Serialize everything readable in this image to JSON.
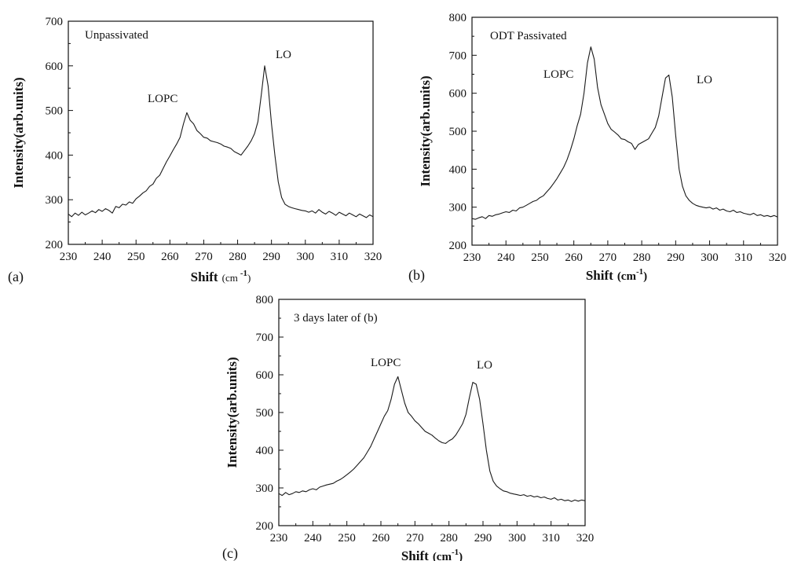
{
  "chart_data": [
    {
      "type": "line",
      "panel_label": "(a)",
      "annotations": [
        "Unpassivated",
        "LOPC",
        "LO"
      ],
      "xlabel": {
        "main": "Shift",
        "unit": "(cm",
        "sup": "-1",
        "close": ")"
      },
      "ylabel": "Intensity(arb.units)",
      "xlim": [
        230,
        320
      ],
      "ylim": [
        200,
        700
      ],
      "xticks": [
        230,
        240,
        250,
        260,
        270,
        280,
        290,
        300,
        310,
        320
      ],
      "yticks": [
        200,
        300,
        400,
        500,
        600,
        700
      ],
      "grid": false,
      "series": [
        {
          "color": "#1a1a1a",
          "x": [
            230,
            231,
            232,
            233,
            234,
            235,
            236,
            237,
            238,
            239,
            240,
            241,
            242,
            243,
            244,
            245,
            246,
            247,
            248,
            249,
            250,
            251,
            252,
            253,
            254,
            255,
            256,
            257,
            258,
            259,
            260,
            261,
            262,
            263,
            264,
            265,
            266,
            267,
            268,
            269,
            270,
            271,
            272,
            273,
            274,
            275,
            276,
            277,
            278,
            279,
            280,
            281,
            282,
            283,
            284,
            285,
            286,
            287,
            288,
            289,
            290,
            291,
            292,
            293,
            294,
            295,
            296,
            297,
            298,
            299,
            300,
            301,
            302,
            303,
            304,
            305,
            306,
            307,
            308,
            309,
            310,
            311,
            312,
            313,
            314,
            315,
            316,
            317,
            318,
            319,
            320
          ],
          "y": [
            268,
            262,
            270,
            265,
            272,
            266,
            270,
            275,
            271,
            278,
            274,
            280,
            276,
            270,
            285,
            282,
            290,
            288,
            295,
            292,
            302,
            308,
            315,
            320,
            330,
            335,
            348,
            355,
            370,
            385,
            398,
            412,
            425,
            440,
            470,
            495,
            478,
            470,
            455,
            448,
            440,
            438,
            432,
            430,
            428,
            425,
            420,
            418,
            415,
            408,
            404,
            400,
            410,
            420,
            432,
            448,
            475,
            535,
            600,
            555,
            470,
            400,
            340,
            305,
            290,
            285,
            282,
            280,
            278,
            276,
            275,
            272,
            275,
            270,
            278,
            272,
            268,
            274,
            270,
            265,
            272,
            268,
            264,
            270,
            266,
            262,
            268,
            264,
            260,
            266,
            262
          ]
        }
      ]
    },
    {
      "type": "line",
      "panel_label": "(b)",
      "annotations": [
        "ODT Passivated",
        "LOPC",
        "LO"
      ],
      "xlabel": {
        "main": "Shift",
        "unit": "(cm",
        "sup": "-1",
        "close": ")"
      },
      "ylabel": "Intensity(arb.units)",
      "xlim": [
        230,
        320
      ],
      "ylim": [
        200,
        800
      ],
      "xticks": [
        230,
        240,
        250,
        260,
        270,
        280,
        290,
        300,
        310,
        320
      ],
      "yticks": [
        200,
        300,
        400,
        500,
        600,
        700,
        800
      ],
      "grid": false,
      "series": [
        {
          "color": "#1a1a1a",
          "x": [
            230,
            231,
            232,
            233,
            234,
            235,
            236,
            237,
            238,
            239,
            240,
            241,
            242,
            243,
            244,
            245,
            246,
            247,
            248,
            249,
            250,
            251,
            252,
            253,
            254,
            255,
            256,
            257,
            258,
            259,
            260,
            261,
            262,
            263,
            264,
            265,
            266,
            267,
            268,
            269,
            270,
            271,
            272,
            273,
            274,
            275,
            276,
            277,
            278,
            279,
            280,
            281,
            282,
            283,
            284,
            285,
            286,
            287,
            288,
            289,
            290,
            291,
            292,
            293,
            294,
            295,
            296,
            297,
            298,
            299,
            300,
            301,
            302,
            303,
            304,
            305,
            306,
            307,
            308,
            309,
            310,
            311,
            312,
            313,
            314,
            315,
            316,
            317,
            318,
            319,
            320
          ],
          "y": [
            270,
            268,
            272,
            275,
            270,
            278,
            276,
            280,
            282,
            285,
            288,
            286,
            292,
            290,
            298,
            300,
            305,
            310,
            315,
            318,
            325,
            330,
            340,
            350,
            362,
            375,
            390,
            405,
            425,
            450,
            480,
            515,
            545,
            600,
            680,
            722,
            690,
            615,
            570,
            545,
            520,
            505,
            498,
            490,
            480,
            478,
            472,
            468,
            452,
            465,
            470,
            475,
            480,
            495,
            510,
            540,
            590,
            640,
            648,
            590,
            490,
            400,
            355,
            330,
            318,
            310,
            305,
            302,
            300,
            298,
            300,
            295,
            298,
            292,
            295,
            290,
            288,
            292,
            286,
            288,
            284,
            282,
            280,
            284,
            278,
            280,
            276,
            278,
            275,
            278,
            274
          ]
        }
      ]
    },
    {
      "type": "line",
      "panel_label": "(c)",
      "annotations": [
        "3 days later of (b)",
        "LOPC",
        "LO"
      ],
      "xlabel": {
        "main": "Shift",
        "unit": "(cm",
        "sup": "-1",
        "close": ")"
      },
      "ylabel": "Intensity(arb.units)",
      "xlim": [
        230,
        320
      ],
      "ylim": [
        200,
        800
      ],
      "xticks": [
        230,
        240,
        250,
        260,
        270,
        280,
        290,
        300,
        310,
        320
      ],
      "yticks": [
        200,
        300,
        400,
        500,
        600,
        700,
        800
      ],
      "grid": false,
      "series": [
        {
          "color": "#1a1a1a",
          "x": [
            230,
            231,
            232,
            233,
            234,
            235,
            236,
            237,
            238,
            239,
            240,
            241,
            242,
            243,
            244,
            245,
            246,
            247,
            248,
            249,
            250,
            251,
            252,
            253,
            254,
            255,
            256,
            257,
            258,
            259,
            260,
            261,
            262,
            263,
            264,
            265,
            266,
            267,
            268,
            269,
            270,
            271,
            272,
            273,
            274,
            275,
            276,
            277,
            278,
            279,
            280,
            281,
            282,
            283,
            284,
            285,
            286,
            287,
            288,
            289,
            290,
            291,
            292,
            293,
            294,
            295,
            296,
            297,
            298,
            299,
            300,
            301,
            302,
            303,
            304,
            305,
            306,
            307,
            308,
            309,
            310,
            311,
            312,
            313,
            314,
            315,
            316,
            317,
            318,
            319,
            320
          ],
          "y": [
            285,
            280,
            288,
            282,
            285,
            290,
            288,
            292,
            290,
            295,
            298,
            295,
            302,
            305,
            308,
            310,
            312,
            318,
            322,
            328,
            335,
            342,
            350,
            360,
            370,
            380,
            395,
            410,
            430,
            450,
            470,
            490,
            505,
            535,
            575,
            595,
            560,
            525,
            500,
            490,
            478,
            470,
            460,
            450,
            445,
            440,
            432,
            425,
            420,
            418,
            425,
            430,
            440,
            455,
            470,
            495,
            540,
            580,
            575,
            535,
            470,
            400,
            345,
            318,
            305,
            298,
            292,
            290,
            286,
            284,
            282,
            280,
            282,
            278,
            280,
            276,
            278,
            274,
            276,
            272,
            270,
            274,
            268,
            270,
            266,
            268,
            264,
            268,
            265,
            268,
            266
          ]
        }
      ]
    }
  ]
}
